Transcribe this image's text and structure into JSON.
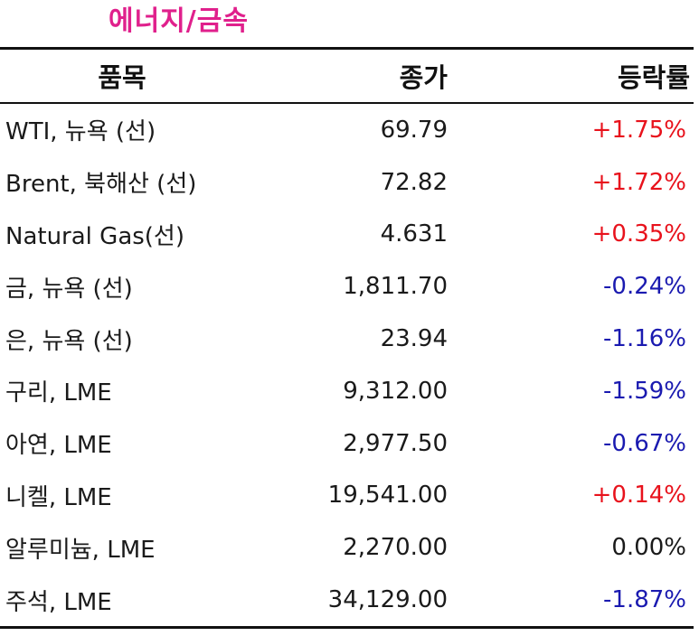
{
  "title": "에너지/금속",
  "colors": {
    "title": "#e0208c",
    "up": "#e8121c",
    "down": "#1a1ab0",
    "flat": "#1a1a1a"
  },
  "headers": {
    "name": "품목",
    "price": "종가",
    "change": "등락률"
  },
  "rows": [
    {
      "name": "WTI, 뉴욕 (선)",
      "price": "69.79",
      "change": "+1.75%",
      "direction": "up"
    },
    {
      "name": "Brent, 북해산 (선)",
      "price": "72.82",
      "change": "+1.72%",
      "direction": "up"
    },
    {
      "name": "Natural Gas(선)",
      "price": "4.631",
      "change": "+0.35%",
      "direction": "up"
    },
    {
      "name": "금, 뉴욕  (선)",
      "price": "1,811.70",
      "change": "-0.24%",
      "direction": "down"
    },
    {
      "name": "은, 뉴욕  (선)",
      "price": "23.94",
      "change": "-1.16%",
      "direction": "down"
    },
    {
      "name": "구리, LME",
      "price": "9,312.00",
      "change": "-1.59%",
      "direction": "down"
    },
    {
      "name": "아연, LME",
      "price": "2,977.50",
      "change": "-0.67%",
      "direction": "down"
    },
    {
      "name": "니켈, LME",
      "price": "19,541.00",
      "change": "+0.14%",
      "direction": "up"
    },
    {
      "name": "알루미늄, LME",
      "price": "2,270.00",
      "change": "0.00%",
      "direction": "flat"
    },
    {
      "name": "주석, LME",
      "price": "34,129.00",
      "change": "-1.87%",
      "direction": "down"
    }
  ]
}
